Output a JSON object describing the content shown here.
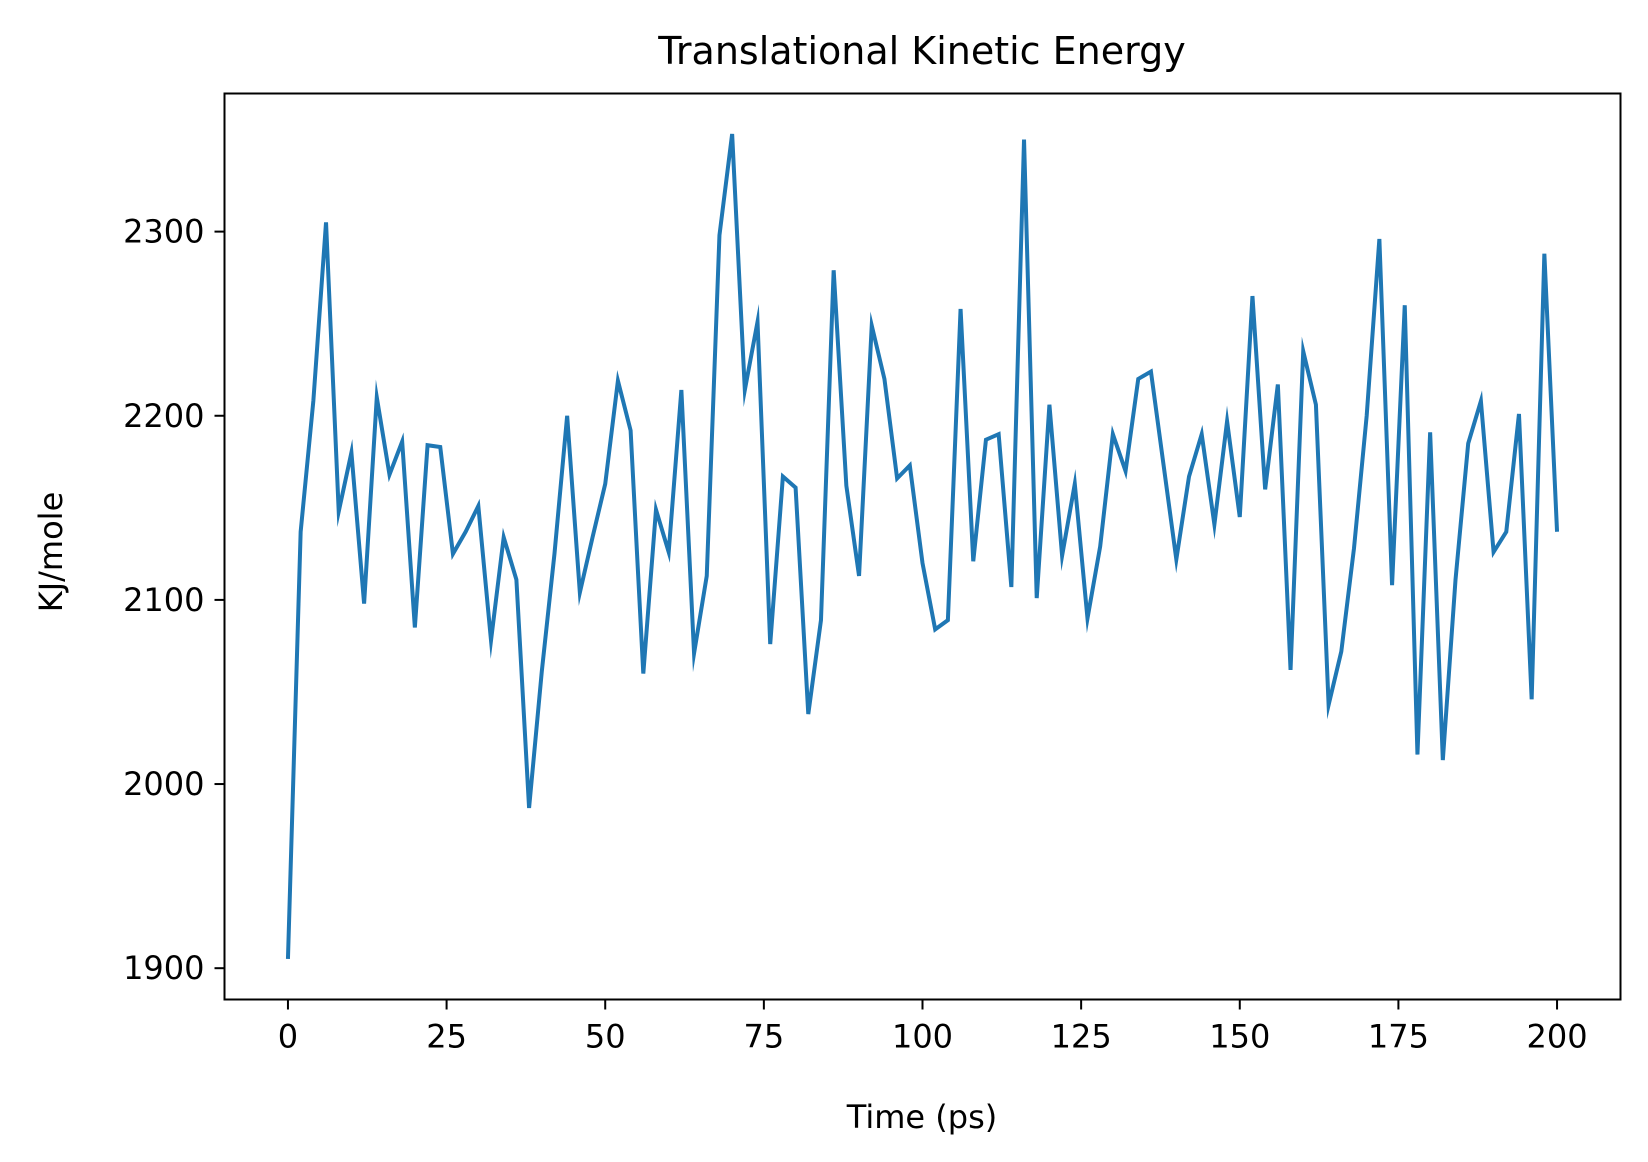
{
  "chart_data": {
    "type": "line",
    "title": "Translational Kinetic Energy",
    "xlabel": "Time (ps)",
    "ylabel": "KJ/mole",
    "xlim": [
      -10,
      210
    ],
    "ylim": [
      1883,
      2375
    ],
    "xticks": [
      0,
      25,
      50,
      75,
      100,
      125,
      150,
      175,
      200
    ],
    "yticks": [
      1900,
      2000,
      2100,
      2200,
      2300
    ],
    "xtick_labels": [
      "0",
      "25",
      "50",
      "75",
      "100",
      "125",
      "150",
      "175",
      "200"
    ],
    "ytick_labels": [
      "1900",
      "2000",
      "2100",
      "2200",
      "2300"
    ],
    "grid": false,
    "legend": "none",
    "series": [
      {
        "color": "#1f77b4",
        "x": [
          0,
          2,
          4,
          6,
          8,
          10,
          12,
          14,
          16,
          18,
          20,
          22,
          24,
          26,
          28,
          30,
          32,
          34,
          36,
          38,
          40,
          42,
          44,
          46,
          48,
          50,
          52,
          54,
          56,
          58,
          60,
          62,
          64,
          66,
          68,
          70,
          72,
          74,
          76,
          78,
          80,
          82,
          84,
          86,
          88,
          90,
          92,
          94,
          96,
          98,
          100,
          102,
          104,
          106,
          108,
          110,
          112,
          114,
          116,
          118,
          120,
          122,
          124,
          126,
          128,
          130,
          132,
          134,
          136,
          138,
          140,
          142,
          144,
          146,
          148,
          150,
          152,
          154,
          156,
          158,
          160,
          162,
          164,
          166,
          168,
          170,
          172,
          174,
          176,
          178,
          180,
          182,
          184,
          186,
          188,
          190,
          192,
          194,
          196,
          198,
          200
        ],
        "y": [
          1905,
          2137,
          2208,
          2305,
          2148,
          2180,
          2098,
          2210,
          2168,
          2186,
          2085,
          2184,
          2183,
          2125,
          2137,
          2151,
          2078,
          2134,
          2111,
          1987,
          2061,
          2125,
          2200,
          2104,
          2134,
          2163,
          2219,
          2192,
          2060,
          2149,
          2126,
          2214,
          2071,
          2113,
          2298,
          2353,
          2214,
          2251,
          2076,
          2167,
          2161,
          2038,
          2089,
          2279,
          2162,
          2113,
          2249,
          2220,
          2166,
          2173,
          2120,
          2084,
          2089,
          2258,
          2121,
          2187,
          2190,
          2107,
          2350,
          2101,
          2206,
          2124,
          2163,
          2090,
          2129,
          2190,
          2170,
          2220,
          2224,
          2173,
          2122,
          2167,
          2190,
          2141,
          2197,
          2145,
          2265,
          2160,
          2217,
          2062,
          2235,
          2206,
          2043,
          2072,
          2128,
          2200,
          2296,
          2108,
          2260,
          2016,
          2191,
          2013,
          2111,
          2185,
          2208,
          2126,
          2137,
          2201,
          2046,
          2288,
          2137
        ]
      }
    ]
  }
}
